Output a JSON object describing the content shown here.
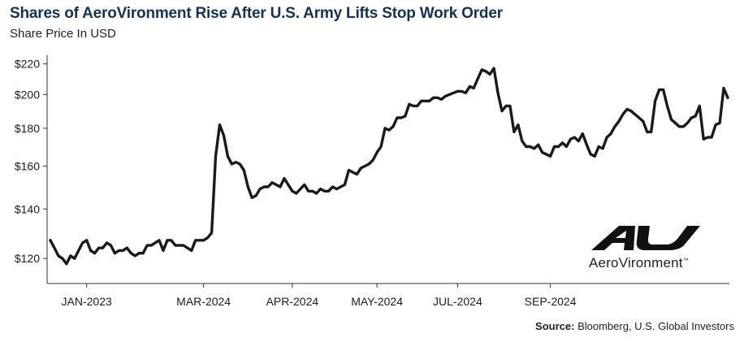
{
  "header": {
    "title": "Shares of AeroVironment Rise After U.S. Army Lifts Stop Work Order",
    "subtitle": "Share Price In USD"
  },
  "source": {
    "label": "Source:",
    "text": "Bloomberg, U.S. Global Investors"
  },
  "logo": {
    "name": "AeroVironment",
    "trademark": "™"
  },
  "colors": {
    "line": "#1a1a1a",
    "title": "#17324f",
    "axis": "#333333"
  },
  "chart_data": {
    "type": "line",
    "title": "Shares of AeroVironment Rise After U.S. Army Lifts Stop Work Order",
    "ylabel": "Share Price In USD",
    "y_scale": "log",
    "ylim": [
      111,
      226
    ],
    "y_ticks": [
      120,
      140,
      160,
      180,
      200,
      220
    ],
    "y_tick_labels": [
      "$120",
      "$140",
      "$160",
      "$180",
      "$200",
      "$220"
    ],
    "x_tick_labels": [
      "JAN-2023",
      "MAR-2024",
      "APR-2024",
      "MAY-2024",
      "JUL-2024",
      "SEP-2024"
    ],
    "x_tick_index": [
      9,
      38,
      60,
      81,
      101,
      124
    ],
    "grid": false,
    "series": [
      {
        "values": [
          127,
          124,
          121,
          120,
          118,
          121,
          120,
          123,
          126,
          127,
          123,
          122,
          124,
          124,
          126,
          125,
          122,
          123,
          123,
          124,
          122,
          121,
          122,
          122,
          125,
          125,
          126,
          127,
          123,
          127,
          127,
          125,
          125,
          125,
          124,
          123,
          127,
          127,
          127,
          128,
          130,
          165,
          182,
          176,
          165,
          161,
          162,
          161,
          158,
          150,
          145,
          146,
          149,
          150,
          150,
          152,
          151,
          150,
          154,
          151,
          148,
          147,
          149,
          151,
          148,
          148,
          147,
          149,
          148,
          148,
          150,
          149,
          150,
          151,
          158,
          157,
          156,
          159,
          160,
          161,
          163,
          167,
          170,
          180,
          179,
          181,
          186,
          186,
          187,
          194,
          193,
          193,
          196,
          196,
          196,
          198,
          198,
          197,
          199,
          200,
          201,
          202,
          202,
          201,
          205,
          204,
          210,
          216,
          215,
          213,
          217,
          201,
          190,
          193,
          193,
          178,
          182,
          173,
          170,
          170,
          169,
          171,
          167,
          166,
          165,
          170,
          170,
          172,
          170,
          174,
          175,
          173,
          177,
          171,
          166,
          165,
          170,
          169,
          175,
          177,
          181,
          184,
          188,
          191,
          190,
          188,
          186,
          184,
          178,
          178,
          196,
          203,
          203,
          193,
          185,
          183,
          181,
          181,
          183,
          186,
          187,
          193,
          174,
          175,
          175,
          182,
          183,
          204,
          198
        ]
      }
    ]
  }
}
